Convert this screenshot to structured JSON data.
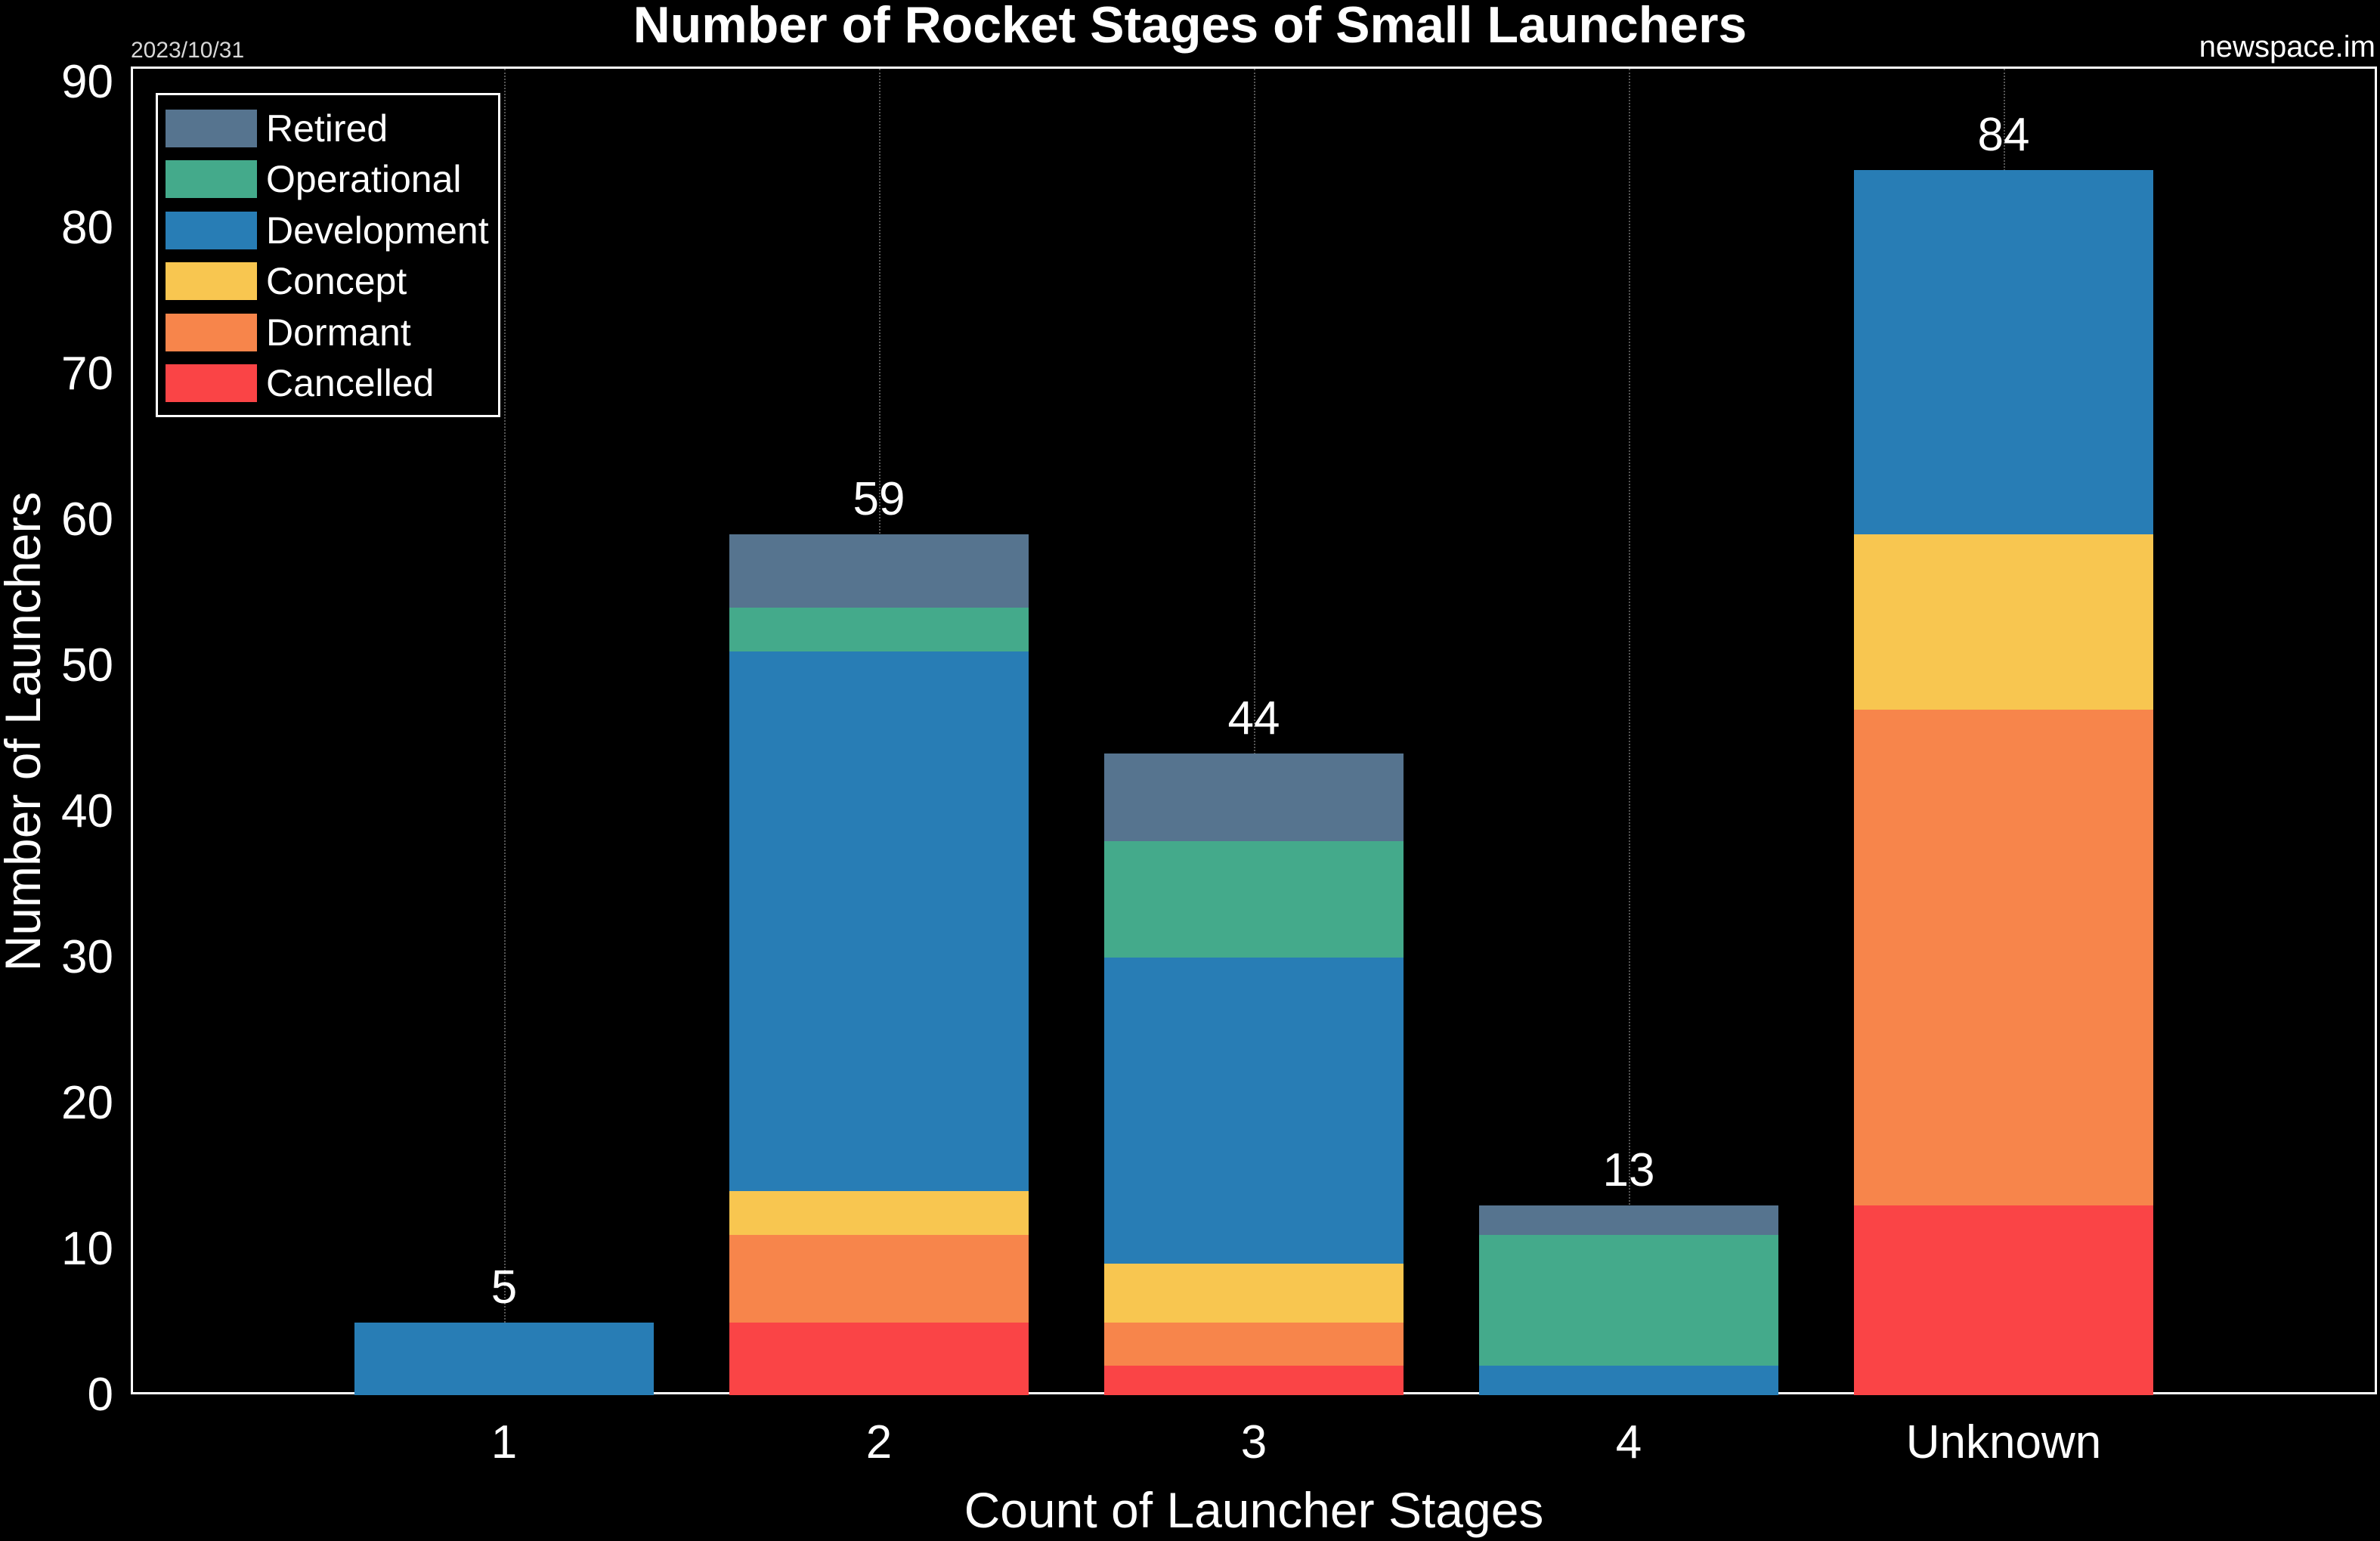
{
  "header": {
    "title": "Number of Rocket Stages of Small Launchers",
    "date": "2023/10/31",
    "source": "newspace.im"
  },
  "legend": [
    {
      "label": "Retired",
      "color": "#56748F"
    },
    {
      "label": "Operational",
      "color": "#44AA8B"
    },
    {
      "label": "Development",
      "color": "#287DB5"
    },
    {
      "label": "Concept",
      "color": "#F8C650"
    },
    {
      "label": "Dormant",
      "color": "#F7854B"
    },
    {
      "label": "Cancelled",
      "color": "#FA4446"
    }
  ],
  "axes": {
    "xlabel": "Count of Launcher Stages",
    "ylabel": "Number of Launchers",
    "yticks": [
      "0",
      "10",
      "20",
      "30",
      "40",
      "50",
      "60",
      "70",
      "80",
      "90"
    ],
    "xticks": [
      "1",
      "2",
      "3",
      "4",
      "Unknown"
    ]
  },
  "totals": [
    "5",
    "59",
    "44",
    "13",
    "84"
  ],
  "chart_data": {
    "type": "bar",
    "stacked": true,
    "title": "Number of Rocket Stages of Small Launchers",
    "xlabel": "Count of Launcher Stages",
    "ylabel": "Number of Launchers",
    "ylim": [
      0,
      90
    ],
    "grid": "vertical dotted at category centers",
    "legend_position": "upper left",
    "categories": [
      "1",
      "2",
      "3",
      "4",
      "Unknown"
    ],
    "series": [
      {
        "name": "Cancelled",
        "color": "#FA4446",
        "values": [
          0,
          5,
          2,
          0,
          13
        ]
      },
      {
        "name": "Dormant",
        "color": "#F7854B",
        "values": [
          0,
          6,
          3,
          0,
          34
        ]
      },
      {
        "name": "Concept",
        "color": "#F8C650",
        "values": [
          0,
          3,
          4,
          0,
          12
        ]
      },
      {
        "name": "Development",
        "color": "#287DB5",
        "values": [
          5,
          37,
          21,
          2,
          25
        ]
      },
      {
        "name": "Operational",
        "color": "#44AA8B",
        "values": [
          0,
          3,
          8,
          9,
          0
        ]
      },
      {
        "name": "Retired",
        "color": "#56748F",
        "values": [
          0,
          5,
          6,
          2,
          0
        ]
      }
    ],
    "totals": [
      5,
      59,
      44,
      13,
      84
    ],
    "annotations": [
      "2023/10/31",
      "newspace.im"
    ]
  }
}
